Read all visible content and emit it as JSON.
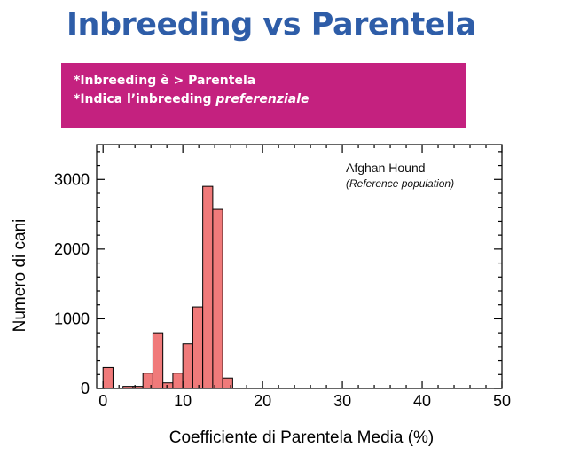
{
  "slide": {
    "title": "Inbreeding vs Parentela",
    "notes": {
      "line1": "*Inbreeding è > Parentela",
      "line2_prefix": "*Indica l’inbreeding ",
      "line2_emphasis": "preferenziale"
    }
  },
  "colors": {
    "title": "#2e5da8",
    "note_background": "#c4217f",
    "bar_fill": "#f07a7a",
    "bar_stroke": "#000000"
  },
  "chart_data": {
    "type": "bar",
    "annotation": "Afghan Hound",
    "annotation_sub": "(Reference population)",
    "xlabel": "Coefficiente di Parentela Media (%)",
    "ylabel": "Numero di cani",
    "xlim": [
      -0.8,
      50
    ],
    "ylim": [
      0,
      3500
    ],
    "xticks": [
      0,
      10,
      20,
      30,
      40,
      50
    ],
    "yticks": [
      0,
      1000,
      2000,
      3000
    ],
    "bin_width": 1.25,
    "bins": [
      {
        "x0": 0.0,
        "value": 300
      },
      {
        "x0": 1.25,
        "value": 0
      },
      {
        "x0": 2.5,
        "value": 30
      },
      {
        "x0": 3.75,
        "value": 30
      },
      {
        "x0": 5.0,
        "value": 220
      },
      {
        "x0": 6.25,
        "value": 800
      },
      {
        "x0": 7.5,
        "value": 80
      },
      {
        "x0": 8.75,
        "value": 220
      },
      {
        "x0": 10.0,
        "value": 640
      },
      {
        "x0": 11.25,
        "value": 1170
      },
      {
        "x0": 12.5,
        "value": 2900
      },
      {
        "x0": 13.75,
        "value": 2570
      },
      {
        "x0": 15.0,
        "value": 150
      }
    ],
    "grid": false,
    "legend": "none"
  }
}
